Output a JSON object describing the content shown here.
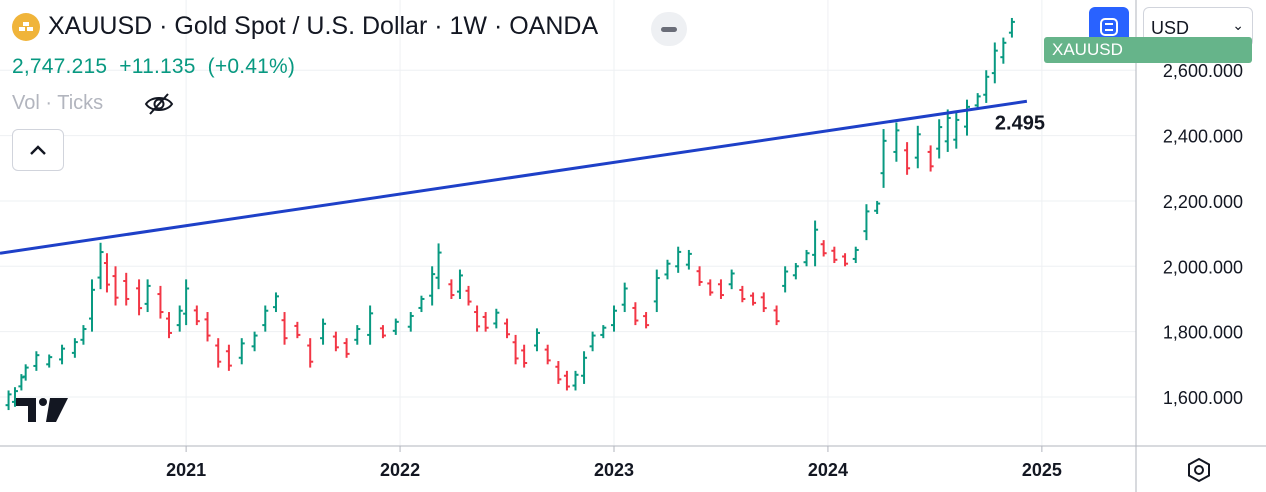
{
  "header": {
    "title": "XAUUSD · Gold Spot / U.S. Dollar · 1W · OANDA",
    "last_price": "2,747.215",
    "change": "+11.135",
    "change_pct": "(+0.41%)",
    "vol_label": "Vol · Ticks"
  },
  "currency_select": {
    "value": "USD"
  },
  "price_tag": {
    "label": "XAUUSD"
  },
  "colors": {
    "up": "#089981",
    "down": "#f23645",
    "trendline": "#1e40c8",
    "price_tag": "#66b48a",
    "accent": "#2962ff"
  },
  "icons": [
    "gold-bars-icon",
    "eye-off-icon",
    "chevron-up-icon",
    "compare-icon",
    "chevron-down-icon",
    "settings-icon",
    "tradingview-logo"
  ],
  "chart_data": {
    "type": "line",
    "subtype": "ohlc-bars",
    "interval": "1W",
    "x_ticks": [
      "2021",
      "2022",
      "2023",
      "2024",
      "2025"
    ],
    "y_ticks": [
      "1,600.000",
      "1,800.000",
      "2,000.000",
      "2,200.000",
      "2,400.000",
      "2,600.000"
    ],
    "x_range": [
      2020.13,
      2025.44
    ],
    "ylim": [
      1450,
      2815
    ],
    "grid": true,
    "series": [
      {
        "values": [
          [
            2020.17,
            1560,
            1620
          ],
          [
            2020.2,
            1570,
            1630
          ],
          [
            2020.23,
            1620,
            1670
          ],
          [
            2020.25,
            1650,
            1700
          ],
          [
            2020.3,
            1680,
            1740
          ],
          [
            2020.36,
            1690,
            1730
          ],
          [
            2020.42,
            1700,
            1760
          ],
          [
            2020.48,
            1720,
            1780
          ],
          [
            2020.52,
            1760,
            1820
          ],
          [
            2020.56,
            1800,
            1960
          ],
          [
            2020.6,
            1930,
            2072
          ],
          [
            2020.63,
            1920,
            2040
          ],
          [
            2020.67,
            1880,
            2000
          ],
          [
            2020.72,
            1880,
            1980
          ],
          [
            2020.78,
            1850,
            1960
          ],
          [
            2020.82,
            1860,
            1960
          ],
          [
            2020.88,
            1840,
            1940
          ],
          [
            2020.92,
            1780,
            1860
          ],
          [
            2020.97,
            1800,
            1880
          ],
          [
            2021.0,
            1820,
            1960
          ],
          [
            2021.05,
            1820,
            1880
          ],
          [
            2021.1,
            1770,
            1860
          ],
          [
            2021.15,
            1690,
            1780
          ],
          [
            2021.2,
            1680,
            1760
          ],
          [
            2021.26,
            1700,
            1780
          ],
          [
            2021.32,
            1740,
            1800
          ],
          [
            2021.37,
            1800,
            1880
          ],
          [
            2021.42,
            1860,
            1920
          ],
          [
            2021.46,
            1760,
            1860
          ],
          [
            2021.52,
            1780,
            1830
          ],
          [
            2021.58,
            1690,
            1780
          ],
          [
            2021.64,
            1760,
            1840
          ],
          [
            2021.7,
            1740,
            1800
          ],
          [
            2021.75,
            1720,
            1780
          ],
          [
            2021.8,
            1760,
            1820
          ],
          [
            2021.86,
            1760,
            1880
          ],
          [
            2021.92,
            1780,
            1820
          ],
          [
            2021.98,
            1790,
            1840
          ],
          [
            2022.05,
            1800,
            1860
          ],
          [
            2022.1,
            1860,
            1910
          ],
          [
            2022.15,
            1880,
            2000
          ],
          [
            2022.18,
            1930,
            2070
          ],
          [
            2022.24,
            1900,
            1960
          ],
          [
            2022.28,
            1900,
            1990
          ],
          [
            2022.32,
            1880,
            1940
          ],
          [
            2022.36,
            1800,
            1880
          ],
          [
            2022.4,
            1800,
            1860
          ],
          [
            2022.45,
            1810,
            1870
          ],
          [
            2022.5,
            1780,
            1840
          ],
          [
            2022.54,
            1700,
            1790
          ],
          [
            2022.58,
            1690,
            1760
          ],
          [
            2022.64,
            1740,
            1810
          ],
          [
            2022.69,
            1700,
            1760
          ],
          [
            2022.74,
            1640,
            1710
          ],
          [
            2022.78,
            1620,
            1680
          ],
          [
            2022.82,
            1620,
            1680
          ],
          [
            2022.86,
            1640,
            1740
          ],
          [
            2022.9,
            1740,
            1800
          ],
          [
            2022.95,
            1780,
            1820
          ],
          [
            2023.0,
            1800,
            1880
          ],
          [
            2023.05,
            1860,
            1950
          ],
          [
            2023.1,
            1820,
            1890
          ],
          [
            2023.15,
            1810,
            1860
          ],
          [
            2023.2,
            1860,
            1990
          ],
          [
            2023.25,
            1960,
            2020
          ],
          [
            2023.3,
            1980,
            2060
          ],
          [
            2023.35,
            1990,
            2050
          ],
          [
            2023.4,
            1940,
            2000
          ],
          [
            2023.45,
            1910,
            1960
          ],
          [
            2023.5,
            1900,
            1960
          ],
          [
            2023.55,
            1930,
            1990
          ],
          [
            2023.6,
            1890,
            1940
          ],
          [
            2023.65,
            1880,
            1920
          ],
          [
            2023.7,
            1860,
            1920
          ],
          [
            2023.76,
            1820,
            1880
          ],
          [
            2023.8,
            1920,
            2000
          ],
          [
            2023.85,
            1960,
            2010
          ],
          [
            2023.9,
            2000,
            2050
          ],
          [
            2023.94,
            2000,
            2140
          ],
          [
            2023.98,
            2030,
            2080
          ],
          [
            2024.03,
            2010,
            2060
          ],
          [
            2024.08,
            2000,
            2040
          ],
          [
            2024.13,
            2010,
            2060
          ],
          [
            2024.18,
            2080,
            2190
          ],
          [
            2024.23,
            2160,
            2200
          ],
          [
            2024.26,
            2240,
            2420
          ],
          [
            2024.32,
            2320,
            2440
          ],
          [
            2024.37,
            2280,
            2380
          ],
          [
            2024.42,
            2300,
            2430
          ],
          [
            2024.48,
            2290,
            2370
          ],
          [
            2024.52,
            2330,
            2450
          ],
          [
            2024.56,
            2350,
            2480
          ],
          [
            2024.6,
            2360,
            2470
          ],
          [
            2024.65,
            2400,
            2510
          ],
          [
            2024.7,
            2480,
            2530
          ],
          [
            2024.74,
            2500,
            2600
          ],
          [
            2024.78,
            2560,
            2685
          ],
          [
            2024.82,
            2620,
            2700
          ],
          [
            2024.86,
            2700,
            2760
          ]
        ]
      }
    ],
    "trendline": {
      "x": [
        2020.13,
        2024.93
      ],
      "y": [
        2040,
        2505
      ]
    },
    "annotations": [
      "2.495"
    ]
  }
}
